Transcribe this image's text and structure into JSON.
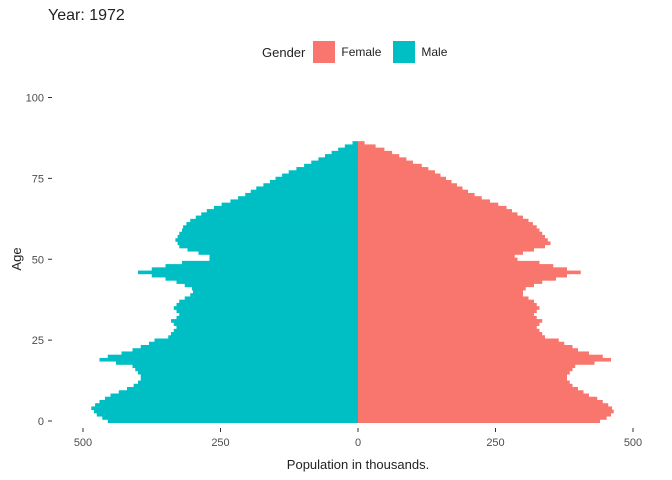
{
  "title": "Year: 1972",
  "legend": {
    "title": "Gender",
    "entries": [
      {
        "label": "Female",
        "color": "#F8766D"
      },
      {
        "label": "Male",
        "color": "#00BFC4"
      }
    ]
  },
  "chart_data": {
    "type": "bar",
    "orientation": "horizontal",
    "subtype": "population-pyramid",
    "title": "Year: 1972",
    "xlabel": "Population in thousands.",
    "ylabel": "Age",
    "xlim": [
      -500,
      500
    ],
    "ylim": [
      0,
      100
    ],
    "x_tick_values": [
      -500,
      -250,
      0,
      250,
      500
    ],
    "x_tick_labels": [
      "500",
      "250",
      "0",
      "250",
      "500"
    ],
    "y_ticks": [
      0,
      25,
      50,
      75,
      100
    ],
    "grid": false,
    "legend_position": "top",
    "ages": [
      0,
      1,
      2,
      3,
      4,
      5,
      6,
      7,
      8,
      9,
      10,
      11,
      12,
      13,
      14,
      15,
      16,
      17,
      18,
      19,
      20,
      21,
      22,
      23,
      24,
      25,
      26,
      27,
      28,
      29,
      30,
      31,
      32,
      33,
      34,
      35,
      36,
      37,
      38,
      39,
      40,
      41,
      42,
      43,
      44,
      45,
      46,
      47,
      48,
      49,
      50,
      51,
      52,
      53,
      54,
      55,
      56,
      57,
      58,
      59,
      60,
      61,
      62,
      63,
      64,
      65,
      66,
      67,
      68,
      69,
      70,
      71,
      72,
      73,
      74,
      75,
      76,
      77,
      78,
      79,
      80,
      81,
      82,
      83,
      84,
      85,
      86
    ],
    "series": [
      {
        "name": "Female",
        "color": "#F8766D",
        "values": [
          440,
          452,
          460,
          465,
          462,
          455,
          445,
          435,
          420,
          410,
          400,
          390,
          385,
          380,
          380,
          385,
          390,
          395,
          430,
          460,
          445,
          420,
          400,
          390,
          375,
          365,
          340,
          335,
          330,
          325,
          330,
          335,
          325,
          320,
          325,
          330,
          325,
          320,
          310,
          300,
          300,
          305,
          320,
          335,
          360,
          380,
          405,
          380,
          355,
          330,
          290,
          285,
          300,
          320,
          340,
          350,
          345,
          340,
          335,
          330,
          325,
          318,
          310,
          300,
          290,
          280,
          270,
          255,
          240,
          225,
          212,
          200,
          190,
          180,
          170,
          160,
          150,
          140,
          128,
          116,
          100,
          88,
          75,
          62,
          48,
          32,
          12
        ]
      },
      {
        "name": "Male",
        "color": "#00BFC4",
        "values": [
          455,
          465,
          475,
          480,
          485,
          478,
          470,
          460,
          450,
          435,
          420,
          408,
          400,
          395,
          395,
          400,
          405,
          410,
          440,
          470,
          455,
          430,
          410,
          395,
          380,
          370,
          345,
          340,
          335,
          330,
          335,
          340,
          330,
          325,
          330,
          335,
          330,
          325,
          315,
          305,
          300,
          302,
          315,
          330,
          350,
          375,
          400,
          375,
          350,
          320,
          270,
          270,
          290,
          310,
          325,
          328,
          332,
          328,
          325,
          320,
          318,
          312,
          305,
          295,
          285,
          275,
          262,
          248,
          232,
          218,
          205,
          195,
          185,
          172,
          160,
          150,
          138,
          126,
          112,
          98,
          85,
          72,
          60,
          48,
          36,
          24,
          10
        ]
      }
    ]
  }
}
